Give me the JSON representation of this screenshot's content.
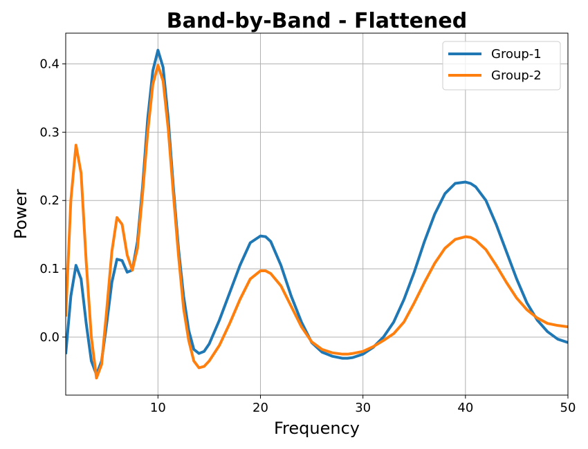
{
  "chart_data": {
    "type": "line",
    "title": "Band-by-Band - Flattened",
    "xlabel": "Frequency",
    "ylabel": "Power",
    "xlim": [
      1,
      50
    ],
    "ylim": [
      -0.085,
      0.445
    ],
    "xticks": [
      10,
      20,
      30,
      40,
      50
    ],
    "yticks": [
      0.0,
      0.1,
      0.2,
      0.3,
      0.4
    ],
    "xtick_labels": [
      "10",
      "20",
      "30",
      "40",
      "50"
    ],
    "ytick_labels": [
      "0.0",
      "0.1",
      "0.2",
      "0.3",
      "0.4"
    ],
    "grid": true,
    "legend_position": "top-right",
    "series": [
      {
        "name": "Group-1",
        "color": "#1f77b4",
        "x": [
          1,
          1.5,
          2,
          2.5,
          3,
          3.5,
          4,
          4.5,
          5,
          5.5,
          6,
          6.5,
          7,
          7.5,
          8,
          8.5,
          9,
          9.5,
          10,
          10.5,
          11,
          11.5,
          12,
          12.5,
          13,
          13.5,
          14,
          14.5,
          15,
          16,
          17,
          18,
          19,
          20,
          20.5,
          21,
          22,
          23,
          24,
          25,
          26,
          27,
          28,
          28.5,
          29,
          30,
          31,
          32,
          33,
          34,
          35,
          36,
          37,
          38,
          39,
          40,
          40.5,
          41,
          42,
          43,
          44,
          45,
          46,
          47,
          48,
          49,
          50
        ],
        "y": [
          -0.025,
          0.06,
          0.105,
          0.085,
          0.02,
          -0.035,
          -0.055,
          -0.035,
          0.02,
          0.08,
          0.114,
          0.112,
          0.095,
          0.098,
          0.14,
          0.22,
          0.32,
          0.39,
          0.42,
          0.395,
          0.32,
          0.22,
          0.13,
          0.06,
          0.01,
          -0.018,
          -0.024,
          -0.021,
          -0.01,
          0.025,
          0.065,
          0.105,
          0.138,
          0.148,
          0.147,
          0.14,
          0.105,
          0.06,
          0.022,
          -0.008,
          -0.022,
          -0.028,
          -0.031,
          -0.031,
          -0.03,
          -0.025,
          -0.015,
          0.0,
          0.022,
          0.055,
          0.095,
          0.14,
          0.18,
          0.21,
          0.225,
          0.227,
          0.225,
          0.22,
          0.2,
          0.165,
          0.125,
          0.085,
          0.05,
          0.025,
          0.008,
          -0.003,
          -0.008
        ]
      },
      {
        "name": "Group-2",
        "color": "#ff7f0e",
        "x": [
          1,
          1.5,
          2,
          2.5,
          3,
          3.5,
          4,
          4.5,
          5,
          5.5,
          6,
          6.5,
          7,
          7.5,
          8,
          8.5,
          9,
          9.5,
          10,
          10.5,
          11,
          11.5,
          12,
          12.5,
          13,
          13.5,
          14,
          14.5,
          15,
          16,
          17,
          18,
          19,
          20,
          20.5,
          21,
          22,
          23,
          24,
          25,
          26,
          27,
          28,
          28.5,
          29,
          30,
          31,
          32,
          33,
          34,
          35,
          36,
          37,
          38,
          39,
          40,
          40.5,
          41,
          42,
          43,
          44,
          45,
          46,
          47,
          48,
          49,
          50
        ],
        "y": [
          0.03,
          0.2,
          0.281,
          0.24,
          0.11,
          0.0,
          -0.06,
          -0.04,
          0.04,
          0.125,
          0.175,
          0.165,
          0.12,
          0.098,
          0.13,
          0.21,
          0.3,
          0.37,
          0.398,
          0.375,
          0.305,
          0.21,
          0.12,
          0.042,
          -0.005,
          -0.035,
          -0.045,
          -0.043,
          -0.035,
          -0.012,
          0.02,
          0.055,
          0.085,
          0.097,
          0.097,
          0.093,
          0.075,
          0.045,
          0.015,
          -0.007,
          -0.018,
          -0.023,
          -0.025,
          -0.025,
          -0.024,
          -0.021,
          -0.014,
          -0.005,
          0.005,
          0.022,
          0.05,
          0.08,
          0.108,
          0.13,
          0.143,
          0.147,
          0.146,
          0.142,
          0.128,
          0.105,
          0.08,
          0.057,
          0.04,
          0.028,
          0.02,
          0.017,
          0.015
        ]
      }
    ]
  }
}
